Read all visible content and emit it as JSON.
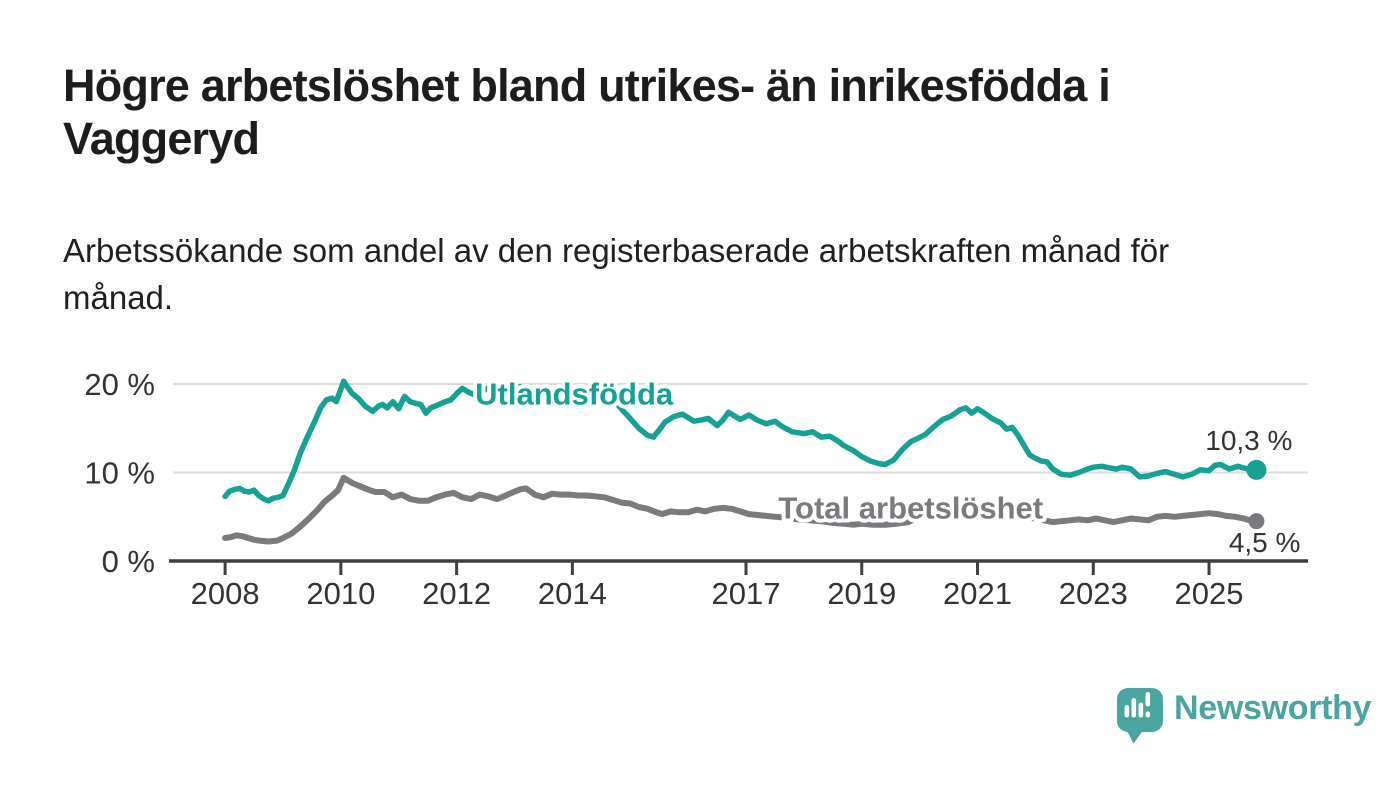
{
  "header": {
    "title_lines": [
      "Högre arbetslöshet bland utrikes- än inrikesfödda i",
      "Vaggeryd"
    ],
    "subtitle_lines": [
      "Arbetssökande som andel av den registerbaserade arbetskraften månad för",
      "månad."
    ]
  },
  "chart_data": {
    "type": "line",
    "unit": "%",
    "grid": "horizontal-only",
    "legend_position": "inline-labels-on-lines",
    "ylim": [
      0,
      22
    ],
    "xlim": [
      2007.1,
      2026.71
    ],
    "y_ticks": [
      {
        "value": 20,
        "label": "20 %"
      },
      {
        "value": 10,
        "label": "10 %"
      },
      {
        "value": 0,
        "label": "0 %"
      }
    ],
    "x_ticks": [
      {
        "value": 2008,
        "label": "2008"
      },
      {
        "value": 2010,
        "label": "2010"
      },
      {
        "value": 2012,
        "label": "2012"
      },
      {
        "value": 2014,
        "label": "2014"
      },
      {
        "value": 2017,
        "label": "2017"
      },
      {
        "value": 2019,
        "label": "2019"
      },
      {
        "value": 2021,
        "label": "2021"
      },
      {
        "value": 2023,
        "label": "2023"
      },
      {
        "value": 2025,
        "label": "2025"
      }
    ],
    "series": [
      {
        "name": "Utlandsfödda",
        "color": "#16a195",
        "end_label": "10,3 %",
        "end_value": 10.3,
        "label_anchor": {
          "year": 2012.32,
          "value": 18.6
        },
        "points": [
          [
            2008.0,
            7.3
          ],
          [
            2008.08,
            7.9
          ],
          [
            2008.17,
            8.1
          ],
          [
            2008.25,
            8.2
          ],
          [
            2008.33,
            7.9
          ],
          [
            2008.42,
            7.8
          ],
          [
            2008.5,
            8.0
          ],
          [
            2008.58,
            7.4
          ],
          [
            2008.67,
            7.0
          ],
          [
            2008.75,
            6.8
          ],
          [
            2008.83,
            7.1
          ],
          [
            2008.92,
            7.2
          ],
          [
            2009.0,
            7.4
          ],
          [
            2009.1,
            8.8
          ],
          [
            2009.2,
            10.3
          ],
          [
            2009.3,
            12.2
          ],
          [
            2009.42,
            14.0
          ],
          [
            2009.55,
            15.8
          ],
          [
            2009.65,
            17.3
          ],
          [
            2009.75,
            18.2
          ],
          [
            2009.85,
            18.4
          ],
          [
            2009.92,
            18.0
          ],
          [
            2010.0,
            19.4
          ],
          [
            2010.05,
            20.3
          ],
          [
            2010.12,
            19.6
          ],
          [
            2010.2,
            18.9
          ],
          [
            2010.3,
            18.4
          ],
          [
            2010.42,
            17.5
          ],
          [
            2010.55,
            16.9
          ],
          [
            2010.65,
            17.5
          ],
          [
            2010.72,
            17.7
          ],
          [
            2010.8,
            17.3
          ],
          [
            2010.9,
            18.0
          ],
          [
            2011.0,
            17.2
          ],
          [
            2011.1,
            18.6
          ],
          [
            2011.2,
            18.0
          ],
          [
            2011.3,
            17.8
          ],
          [
            2011.38,
            17.7
          ],
          [
            2011.47,
            16.7
          ],
          [
            2011.55,
            17.3
          ],
          [
            2011.7,
            17.7
          ],
          [
            2011.8,
            18.0
          ],
          [
            2011.9,
            18.2
          ],
          [
            2012.0,
            18.9
          ],
          [
            2012.1,
            19.5
          ],
          [
            2012.2,
            19.1
          ],
          [
            2012.3,
            18.8
          ],
          [
            2012.45,
            19.2
          ],
          [
            2012.6,
            19.8
          ],
          [
            2012.7,
            19.4
          ],
          [
            2012.8,
            19.1
          ],
          [
            2012.9,
            19.3
          ],
          [
            2013.0,
            19.5
          ],
          [
            2013.1,
            19.7
          ],
          [
            2013.25,
            19.4
          ],
          [
            2013.4,
            19.0
          ],
          [
            2013.55,
            18.7
          ],
          [
            2013.7,
            18.6
          ],
          [
            2013.85,
            18.9
          ],
          [
            2014.0,
            19.1
          ],
          [
            2014.15,
            19.3
          ],
          [
            2014.3,
            19.6
          ],
          [
            2014.45,
            19.4
          ],
          [
            2014.6,
            18.8
          ],
          [
            2014.75,
            17.9
          ],
          [
            2014.9,
            16.8
          ],
          [
            2015.0,
            16.1
          ],
          [
            2015.15,
            15.0
          ],
          [
            2015.3,
            14.2
          ],
          [
            2015.4,
            14.0
          ],
          [
            2015.5,
            14.8
          ],
          [
            2015.6,
            15.7
          ],
          [
            2015.75,
            16.3
          ],
          [
            2015.9,
            16.6
          ],
          [
            2016.0,
            16.2
          ],
          [
            2016.1,
            15.8
          ],
          [
            2016.2,
            15.9
          ],
          [
            2016.35,
            16.1
          ],
          [
            2016.5,
            15.3
          ],
          [
            2016.6,
            15.9
          ],
          [
            2016.7,
            16.8
          ],
          [
            2016.8,
            16.4
          ],
          [
            2016.9,
            16.0
          ],
          [
            2017.05,
            16.5
          ],
          [
            2017.2,
            15.9
          ],
          [
            2017.35,
            15.5
          ],
          [
            2017.5,
            15.8
          ],
          [
            2017.65,
            15.1
          ],
          [
            2017.8,
            14.6
          ],
          [
            2018.0,
            14.4
          ],
          [
            2018.15,
            14.6
          ],
          [
            2018.3,
            14.0
          ],
          [
            2018.45,
            14.1
          ],
          [
            2018.6,
            13.5
          ],
          [
            2018.7,
            13.0
          ],
          [
            2018.85,
            12.5
          ],
          [
            2019.0,
            11.8
          ],
          [
            2019.15,
            11.3
          ],
          [
            2019.3,
            11.0
          ],
          [
            2019.4,
            10.9
          ],
          [
            2019.55,
            11.4
          ],
          [
            2019.7,
            12.6
          ],
          [
            2019.85,
            13.5
          ],
          [
            2019.95,
            13.8
          ],
          [
            2020.1,
            14.3
          ],
          [
            2020.25,
            15.2
          ],
          [
            2020.4,
            16.0
          ],
          [
            2020.55,
            16.4
          ],
          [
            2020.7,
            17.1
          ],
          [
            2020.8,
            17.3
          ],
          [
            2020.9,
            16.7
          ],
          [
            2021.0,
            17.2
          ],
          [
            2021.1,
            16.8
          ],
          [
            2021.25,
            16.1
          ],
          [
            2021.4,
            15.6
          ],
          [
            2021.5,
            14.9
          ],
          [
            2021.6,
            15.1
          ],
          [
            2021.7,
            14.2
          ],
          [
            2021.8,
            13.1
          ],
          [
            2021.9,
            12.0
          ],
          [
            2022.0,
            11.6
          ],
          [
            2022.1,
            11.3
          ],
          [
            2022.2,
            11.2
          ],
          [
            2022.3,
            10.4
          ],
          [
            2022.45,
            9.8
          ],
          [
            2022.6,
            9.7
          ],
          [
            2022.75,
            10.0
          ],
          [
            2022.9,
            10.4
          ],
          [
            2023.0,
            10.6
          ],
          [
            2023.15,
            10.7
          ],
          [
            2023.3,
            10.5
          ],
          [
            2023.4,
            10.4
          ],
          [
            2023.5,
            10.6
          ],
          [
            2023.65,
            10.4
          ],
          [
            2023.8,
            9.5
          ],
          [
            2023.95,
            9.6
          ],
          [
            2024.1,
            9.9
          ],
          [
            2024.25,
            10.1
          ],
          [
            2024.4,
            9.8
          ],
          [
            2024.55,
            9.5
          ],
          [
            2024.7,
            9.8
          ],
          [
            2024.85,
            10.3
          ],
          [
            2025.0,
            10.2
          ],
          [
            2025.1,
            10.8
          ],
          [
            2025.2,
            10.9
          ],
          [
            2025.35,
            10.4
          ],
          [
            2025.5,
            10.7
          ],
          [
            2025.6,
            10.5
          ],
          [
            2025.75,
            10.3
          ]
        ]
      },
      {
        "name": "Total arbetslöshet",
        "color": "#7b7b7f",
        "end_label": "4,5 %",
        "end_value": 4.5,
        "label_anchor": {
          "year": 2017.56,
          "value": 5.75
        },
        "points": [
          [
            2008.0,
            2.6
          ],
          [
            2008.1,
            2.7
          ],
          [
            2008.2,
            2.9
          ],
          [
            2008.3,
            2.8
          ],
          [
            2008.4,
            2.6
          ],
          [
            2008.5,
            2.4
          ],
          [
            2008.6,
            2.3
          ],
          [
            2008.75,
            2.2
          ],
          [
            2008.9,
            2.3
          ],
          [
            2009.0,
            2.6
          ],
          [
            2009.15,
            3.1
          ],
          [
            2009.3,
            3.9
          ],
          [
            2009.45,
            4.8
          ],
          [
            2009.6,
            5.8
          ],
          [
            2009.72,
            6.7
          ],
          [
            2009.85,
            7.4
          ],
          [
            2009.95,
            8.0
          ],
          [
            2010.05,
            9.4
          ],
          [
            2010.2,
            8.8
          ],
          [
            2010.35,
            8.4
          ],
          [
            2010.5,
            8.0
          ],
          [
            2010.6,
            7.8
          ],
          [
            2010.75,
            7.8
          ],
          [
            2010.9,
            7.2
          ],
          [
            2011.05,
            7.5
          ],
          [
            2011.2,
            7.0
          ],
          [
            2011.35,
            6.8
          ],
          [
            2011.5,
            6.8
          ],
          [
            2011.65,
            7.2
          ],
          [
            2011.8,
            7.5
          ],
          [
            2011.95,
            7.7
          ],
          [
            2012.1,
            7.2
          ],
          [
            2012.25,
            7.0
          ],
          [
            2012.4,
            7.5
          ],
          [
            2012.55,
            7.3
          ],
          [
            2012.7,
            7.0
          ],
          [
            2012.85,
            7.4
          ],
          [
            2012.95,
            7.7
          ],
          [
            2013.1,
            8.1
          ],
          [
            2013.2,
            8.2
          ],
          [
            2013.35,
            7.5
          ],
          [
            2013.5,
            7.2
          ],
          [
            2013.65,
            7.6
          ],
          [
            2013.8,
            7.5
          ],
          [
            2013.95,
            7.5
          ],
          [
            2014.1,
            7.4
          ],
          [
            2014.25,
            7.4
          ],
          [
            2014.4,
            7.3
          ],
          [
            2014.55,
            7.2
          ],
          [
            2014.7,
            6.9
          ],
          [
            2014.85,
            6.6
          ],
          [
            2015.0,
            6.5
          ],
          [
            2015.15,
            6.1
          ],
          [
            2015.3,
            5.9
          ],
          [
            2015.45,
            5.5
          ],
          [
            2015.55,
            5.3
          ],
          [
            2015.7,
            5.6
          ],
          [
            2015.85,
            5.5
          ],
          [
            2016.0,
            5.5
          ],
          [
            2016.15,
            5.8
          ],
          [
            2016.3,
            5.6
          ],
          [
            2016.45,
            5.9
          ],
          [
            2016.6,
            6.0
          ],
          [
            2016.75,
            5.9
          ],
          [
            2016.9,
            5.6
          ],
          [
            2017.05,
            5.3
          ],
          [
            2017.2,
            5.2
          ],
          [
            2017.35,
            5.1
          ],
          [
            2017.5,
            5.0
          ],
          [
            2017.7,
            4.9
          ],
          [
            2017.9,
            4.7
          ],
          [
            2018.1,
            4.6
          ],
          [
            2018.3,
            4.5
          ],
          [
            2018.5,
            4.3
          ],
          [
            2018.7,
            4.2
          ],
          [
            2018.85,
            4.1
          ],
          [
            2019.0,
            4.2
          ],
          [
            2019.2,
            4.1
          ],
          [
            2019.4,
            4.1
          ],
          [
            2019.6,
            4.2
          ],
          [
            2019.8,
            4.4
          ],
          [
            2020.0,
            5.0
          ],
          [
            2020.2,
            5.6
          ],
          [
            2020.4,
            6.1
          ],
          [
            2020.6,
            6.3
          ],
          [
            2020.8,
            6.2
          ],
          [
            2021.0,
            6.0
          ],
          [
            2021.2,
            5.8
          ],
          [
            2021.4,
            5.5
          ],
          [
            2021.6,
            5.2
          ],
          [
            2021.8,
            5.0
          ],
          [
            2022.0,
            4.8
          ],
          [
            2022.15,
            4.6
          ],
          [
            2022.3,
            4.4
          ],
          [
            2022.45,
            4.5
          ],
          [
            2022.6,
            4.6
          ],
          [
            2022.75,
            4.7
          ],
          [
            2022.9,
            4.6
          ],
          [
            2023.05,
            4.8
          ],
          [
            2023.2,
            4.6
          ],
          [
            2023.35,
            4.4
          ],
          [
            2023.5,
            4.6
          ],
          [
            2023.65,
            4.8
          ],
          [
            2023.8,
            4.7
          ],
          [
            2023.95,
            4.6
          ],
          [
            2024.1,
            5.0
          ],
          [
            2024.25,
            5.1
          ],
          [
            2024.4,
            5.0
          ],
          [
            2024.55,
            5.1
          ],
          [
            2024.7,
            5.2
          ],
          [
            2024.85,
            5.3
          ],
          [
            2025.0,
            5.4
          ],
          [
            2025.15,
            5.3
          ],
          [
            2025.3,
            5.1
          ],
          [
            2025.45,
            5.0
          ],
          [
            2025.6,
            4.8
          ],
          [
            2025.75,
            4.5
          ]
        ]
      }
    ]
  },
  "footer": {
    "brand": "Newsworthy",
    "logo_icon": "newsworthy-speech-bubble-bar-chart-icon"
  },
  "colors": {
    "accent_teal": "#16a195",
    "series_gray": "#7b7b7f",
    "grid": "#dcdcdc",
    "axis": "#3f3f3f",
    "tick_text": "#333333",
    "title_text": "#1d1d1b",
    "logo_teal": "#4aa5a0"
  }
}
